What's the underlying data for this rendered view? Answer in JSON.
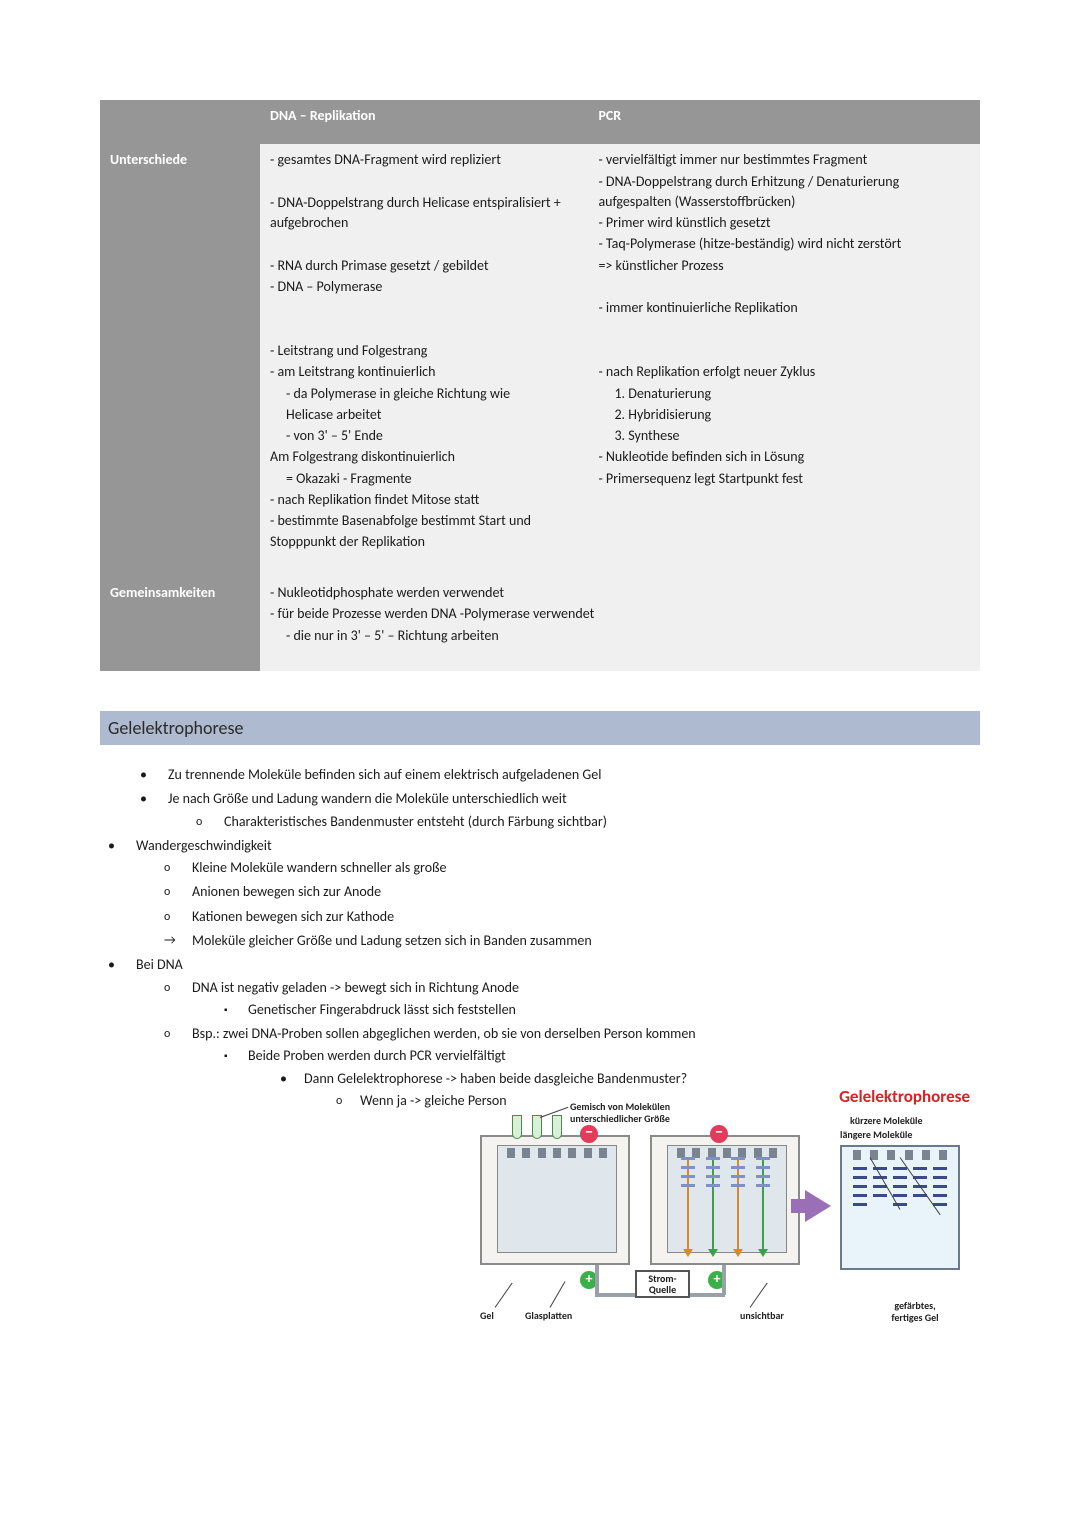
{
  "table": {
    "header_col1": "DNA – Replikation",
    "header_col2": "PCR",
    "row1_label": "Unterschiede",
    "row2_label": "Gemeinsamkeiten",
    "colors": {
      "header_bg": "#969696",
      "header_fg": "#ffffff",
      "body_bg": "#f1f0f0"
    },
    "diff_dna": [
      "- gesamtes DNA-Fragment wird repliziert",
      "",
      "- DNA-Doppelstrang durch Helicase entspiralisiert + aufgebrochen",
      "",
      "- RNA durch Primase gesetzt / gebildet",
      "- DNA – Polymerase",
      "",
      "",
      "- Leitstrang und Folgestrang",
      "- am Leitstrang kontinuierlich",
      "   - da Polymerase in gleiche Richtung wie",
      "     Helicase arbeitet",
      "   - von 3' – 5' Ende",
      "Am Folgestrang diskontinuierlich",
      "   = Okazaki - Fragmente",
      "- nach Replikation findet Mitose statt",
      "- bestimmte Basenabfolge bestimmt Start und Stopppunkt der Replikation"
    ],
    "diff_pcr": [
      "- vervielfältigt immer nur bestimmtes Fragment",
      "- DNA-Doppelstrang durch Erhitzung / Denaturierung aufgespalten (Wasserstoffbrücken)",
      "- Primer wird künstlich gesetzt",
      "- Taq-Polymerase (hitze-beständig) wird nicht zerstört",
      "=> künstlicher Prozess",
      "",
      "- immer kontinuierliche Replikation",
      "",
      "",
      "- nach Replikation erfolgt neuer Zyklus",
      "   1. Denaturierung",
      "   2. Hybridisierung",
      "   3. Synthese",
      "- Nukleotide befinden sich in Lösung",
      "- Primersequenz legt Startpunkt fest"
    ],
    "common": [
      "- Nukleotidphosphate werden verwendet",
      "- für beide Prozesse werden DNA -Polymerase verwendet",
      "   - die nur in 3' – 5' – Richtung arbeiten"
    ]
  },
  "section_heading": "Gelelektrophorese",
  "bullets": {
    "b1": "Zu trennende Moleküle befinden sich auf einem elektrisch aufgeladenen Gel",
    "b2": "Je nach Größe und Ladung wandern die Moleküle unterschiedlich weit",
    "b2a": "Charakteristisches Bandenmuster entsteht (durch Färbung sichtbar)",
    "b3": "Wandergeschwindigkeit",
    "b3a": "Kleine Moleküle wandern schneller als große",
    "b3b": "Anionen bewegen sich zur Anode",
    "b3c": "Kationen bewegen sich zur Kathode",
    "b3d": "Moleküle gleicher Größe und Ladung setzen sich in Banden zusammen",
    "b4": "Bei DNA",
    "b4a": "DNA ist negativ geladen -> bewegt sich in Richtung Anode",
    "b4a1": "Genetischer Fingerabdruck lässt sich feststellen",
    "b4b": "Bsp.: zwei DNA-Proben sollen abgeglichen werden, ob sie von derselben Person kommen",
    "b4b1": "Beide Proben werden durch PCR vervielfältigt",
    "b4b1a": "Dann Gelelektrophorese -> haben beide dasgleiche Bandenmuster?",
    "b4b1a1": "Wenn ja -> gleiche Person"
  },
  "diagram": {
    "title": "Gelelektrophorese",
    "title_color": "#d62324",
    "labels": {
      "mix": "Gemisch von Molekülen\nunterschiedlicher Größe",
      "short": "kürzere Moleküle",
      "long": "längere Moleküle",
      "gel": "Gel",
      "glass": "Glasplatten",
      "unsichtbar": "unsichtbar",
      "result": "gefärbtes,\nfertiges Gel",
      "strom": "Strom-\nQuelle"
    },
    "colors": {
      "chamber_bg": "#f4f3f0",
      "chamber_border": "#8a8a8a",
      "result_bg": "#e9f4fa",
      "result_border": "#6a7a8a",
      "band": "#7f90c7",
      "band_dark": "#3a4a8a",
      "arrow": "#9a6fb8",
      "cable": "#9aa0a8",
      "minus": "#e33b5a",
      "plus": "#3bb04a",
      "down_arrow_orange": "#d48a2a",
      "down_arrow_green": "#3aa04a"
    }
  }
}
